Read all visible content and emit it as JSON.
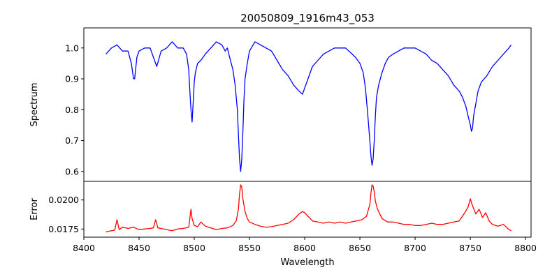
{
  "chart_data": [
    {
      "type": "line",
      "title": "20050809_1916m43_053",
      "ylabel": "Spectrum",
      "xlabel": "",
      "xlim": [
        8400,
        8805
      ],
      "ylim": [
        0.568,
        1.065
      ],
      "yticks": [
        0.6,
        0.7,
        0.8,
        0.9,
        1.0
      ],
      "yticklabels": [
        "0.6",
        "0.7",
        "0.8",
        "0.9",
        "1.0"
      ],
      "color": "#0000ff",
      "series": [
        {
          "x": [
            8420,
            8425,
            8430,
            8435,
            8440,
            8443,
            8445,
            8446,
            8448,
            8450,
            8455,
            8460,
            8463,
            8466,
            8470,
            8475,
            8480,
            8485,
            8490,
            8493,
            8495,
            8496,
            8497,
            8498,
            8499,
            8500,
            8501,
            8503,
            8506,
            8510,
            8515,
            8520,
            8525,
            8528,
            8530,
            8532,
            8535,
            8537,
            8539,
            8540,
            8541,
            8542,
            8543,
            8544,
            8545,
            8546,
            8548,
            8550,
            8555,
            8560,
            8565,
            8570,
            8575,
            8580,
            8585,
            8590,
            8595,
            8598,
            8600,
            8603,
            8607,
            8612,
            8617,
            8622,
            8627,
            8632,
            8637,
            8640,
            8643,
            8646,
            8650,
            8653,
            8655,
            8657,
            8659,
            8660,
            8661,
            8662,
            8663,
            8664,
            8665,
            8667,
            8670,
            8673,
            8676,
            8680,
            8685,
            8690,
            8695,
            8700,
            8705,
            8710,
            8715,
            8720,
            8725,
            8730,
            8735,
            8740,
            8743,
            8746,
            8748,
            8750,
            8751,
            8752,
            8753,
            8755,
            8757,
            8760,
            8765,
            8770,
            8775,
            8780,
            8785,
            8787
          ],
          "y": [
            0.98,
            1.0,
            1.01,
            0.99,
            0.99,
            0.95,
            0.9,
            0.9,
            0.97,
            0.99,
            1.0,
            1.0,
            0.97,
            0.94,
            0.99,
            1.0,
            1.02,
            1.0,
            1.0,
            0.98,
            0.93,
            0.86,
            0.8,
            0.76,
            0.82,
            0.89,
            0.92,
            0.95,
            0.96,
            0.98,
            1.0,
            1.02,
            1.01,
            0.99,
            1.0,
            0.97,
            0.93,
            0.88,
            0.8,
            0.72,
            0.64,
            0.6,
            0.64,
            0.73,
            0.83,
            0.9,
            0.95,
            0.99,
            1.02,
            1.01,
            1.0,
            0.99,
            0.96,
            0.93,
            0.91,
            0.88,
            0.86,
            0.85,
            0.87,
            0.9,
            0.94,
            0.96,
            0.98,
            0.99,
            1.0,
            1.0,
            1.0,
            0.99,
            0.98,
            0.97,
            0.95,
            0.92,
            0.87,
            0.79,
            0.7,
            0.65,
            0.62,
            0.64,
            0.7,
            0.78,
            0.84,
            0.88,
            0.92,
            0.95,
            0.97,
            0.98,
            0.99,
            1.0,
            1.0,
            1.0,
            0.99,
            0.98,
            0.96,
            0.95,
            0.93,
            0.91,
            0.88,
            0.86,
            0.84,
            0.81,
            0.78,
            0.75,
            0.73,
            0.74,
            0.78,
            0.82,
            0.86,
            0.89,
            0.91,
            0.94,
            0.96,
            0.98,
            1.0,
            1.01
          ]
        }
      ]
    },
    {
      "type": "line",
      "title": "",
      "ylabel": "Error",
      "xlabel": "Wavelength",
      "xlim": [
        8400,
        8805
      ],
      "ylim": [
        0.0168,
        0.0216
      ],
      "xticks": [
        8400,
        8450,
        8500,
        8550,
        8600,
        8650,
        8700,
        8750,
        8800
      ],
      "xticklabels": [
        "8400",
        "8450",
        "8500",
        "8550",
        "8600",
        "8650",
        "8700",
        "8750",
        "8800"
      ],
      "yticks": [
        0.0175,
        0.02
      ],
      "yticklabels": [
        "0.0175",
        "0.0200"
      ],
      "color": "#ff0000",
      "series": [
        {
          "x": [
            8420,
            8425,
            8428,
            8430,
            8432,
            8435,
            8440,
            8445,
            8450,
            8455,
            8460,
            8463,
            8465,
            8467,
            8470,
            8475,
            8480,
            8485,
            8490,
            8495,
            8497,
            8498,
            8500,
            8503,
            8506,
            8510,
            8515,
            8520,
            8525,
            8530,
            8535,
            8538,
            8540,
            8541,
            8542,
            8543,
            8544,
            8546,
            8548,
            8550,
            8555,
            8560,
            8565,
            8570,
            8575,
            8580,
            8585,
            8590,
            8595,
            8598,
            8600,
            8603,
            8607,
            8612,
            8617,
            8622,
            8627,
            8632,
            8637,
            8642,
            8647,
            8652,
            8656,
            8659,
            8660,
            8661,
            8662,
            8663,
            8664,
            8666,
            8668,
            8670,
            8675,
            8680,
            8685,
            8690,
            8695,
            8700,
            8705,
            8710,
            8715,
            8720,
            8725,
            8730,
            8735,
            8740,
            8745,
            8748,
            8750,
            8752,
            8755,
            8758,
            8761,
            8764,
            8767,
            8770,
            8775,
            8780,
            8785,
            8787
          ],
          "y": [
            0.01725,
            0.01735,
            0.0174,
            0.0183,
            0.01745,
            0.01765,
            0.01755,
            0.01765,
            0.01745,
            0.0175,
            0.01755,
            0.0176,
            0.0183,
            0.0176,
            0.01755,
            0.01745,
            0.01735,
            0.0175,
            0.01755,
            0.01765,
            0.0192,
            0.0184,
            0.0178,
            0.0177,
            0.0181,
            0.01775,
            0.0176,
            0.01745,
            0.01755,
            0.0176,
            0.0178,
            0.0182,
            0.0192,
            0.0205,
            0.0213,
            0.0211,
            0.0201,
            0.019,
            0.0184,
            0.0181,
            0.0179,
            0.01775,
            0.01765,
            0.0177,
            0.0178,
            0.0179,
            0.018,
            0.0183,
            0.0188,
            0.019,
            0.0189,
            0.0186,
            0.0182,
            0.0181,
            0.018,
            0.0181,
            0.018,
            0.0181,
            0.018,
            0.0181,
            0.0182,
            0.0183,
            0.0186,
            0.0196,
            0.0206,
            0.0213,
            0.0212,
            0.0207,
            0.0199,
            0.0192,
            0.0188,
            0.0184,
            0.0181,
            0.0181,
            0.018,
            0.0179,
            0.0179,
            0.0178,
            0.0178,
            0.0179,
            0.018,
            0.0179,
            0.0179,
            0.018,
            0.0181,
            0.0182,
            0.0189,
            0.0194,
            0.0201,
            0.0195,
            0.0188,
            0.0192,
            0.0185,
            0.0189,
            0.0182,
            0.0179,
            0.01775,
            0.0179,
            0.01745,
            0.01735
          ]
        }
      ]
    }
  ]
}
